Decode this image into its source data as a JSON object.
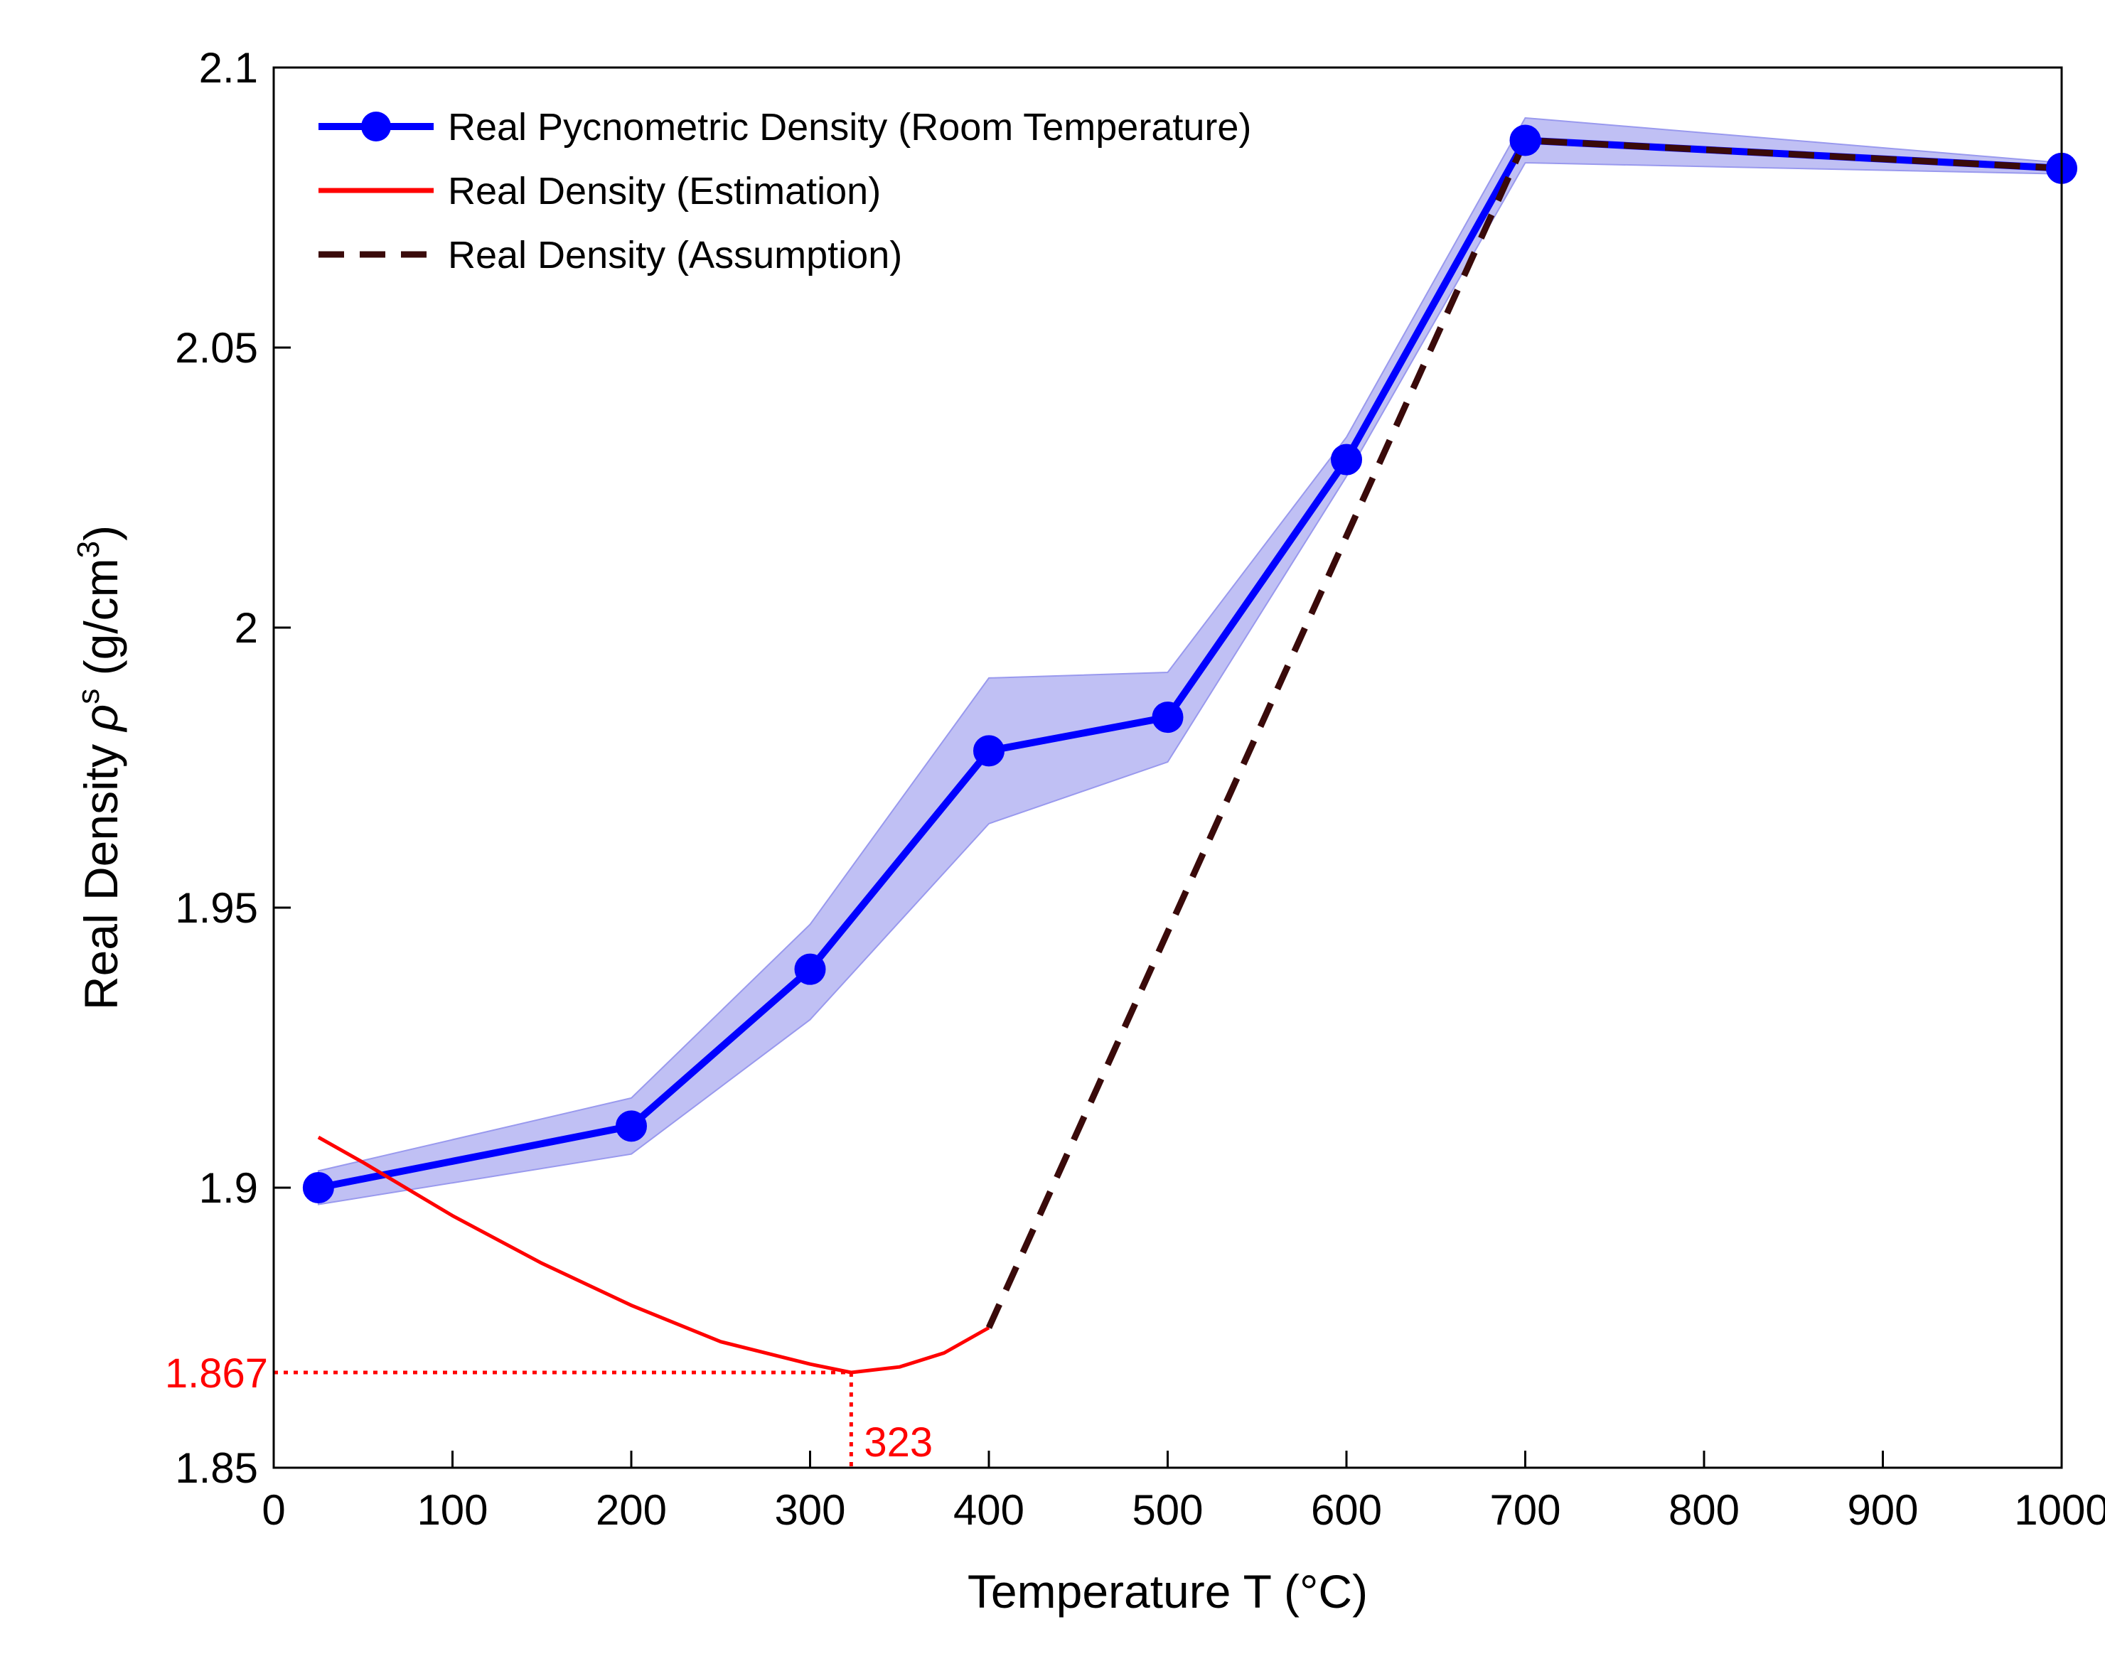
{
  "chart_data": {
    "type": "line",
    "title": "",
    "xlabel": "Temperature T (°C)",
    "ylabel_parts": {
      "prefix": "Real Density ",
      "symbol": "ρ",
      "superscript": "s",
      "unit_prefix": " (g/cm",
      "unit_superscript": "3",
      "unit_suffix": ")"
    },
    "xlim": [
      0,
      1000
    ],
    "ylim": [
      1.85,
      2.1
    ],
    "xticks": [
      0,
      100,
      200,
      300,
      400,
      500,
      600,
      700,
      800,
      900,
      1000
    ],
    "xtick_labels": [
      "0",
      "100",
      "200",
      "300",
      "400",
      "500",
      "600",
      "700",
      "800",
      "900",
      "1000"
    ],
    "yticks": [
      1.85,
      1.9,
      1.95,
      2.0,
      2.05,
      2.1
    ],
    "ytick_labels": [
      "1.85",
      "1.9",
      "1.95",
      "2",
      "2.05",
      "2.1"
    ],
    "grid": false,
    "legend_position": "top-left",
    "series": [
      {
        "name": "Real Pycnometric Density (Room Temperature)",
        "style": "line-markers",
        "color": "#0000ff",
        "band_color": "#9999ee",
        "x": [
          25,
          200,
          300,
          400,
          500,
          600,
          700,
          1000
        ],
        "y": [
          1.9,
          1.911,
          1.939,
          1.978,
          1.984,
          2.03,
          2.087,
          2.082
        ],
        "upper": [
          1.903,
          1.916,
          1.947,
          1.991,
          1.992,
          2.034,
          2.091,
          2.083
        ],
        "lower": [
          1.897,
          1.906,
          1.93,
          1.965,
          1.976,
          2.027,
          2.083,
          2.081
        ]
      },
      {
        "name": "Real Density (Estimation)",
        "style": "solid",
        "color": "#ff0000",
        "x": [
          25,
          50,
          100,
          150,
          200,
          250,
          300,
          323,
          350,
          375,
          400
        ],
        "y": [
          1.909,
          1.9045,
          1.895,
          1.8865,
          1.879,
          1.8725,
          1.8685,
          1.867,
          1.868,
          1.8705,
          1.875
        ]
      },
      {
        "name": "Real Density (Assumption)",
        "style": "dashed",
        "color": "#3a0a0a",
        "x": [
          400,
          700,
          1000
        ],
        "y": [
          1.875,
          2.087,
          2.082
        ]
      }
    ],
    "annotations": [
      {
        "label": "1.867",
        "x": 323,
        "y": 1.867,
        "kind": "horizontal-guide",
        "color": "#ff0000"
      },
      {
        "label": "323",
        "x": 323,
        "y": 1.867,
        "kind": "vertical-guide",
        "color": "#ff0000"
      }
    ]
  }
}
